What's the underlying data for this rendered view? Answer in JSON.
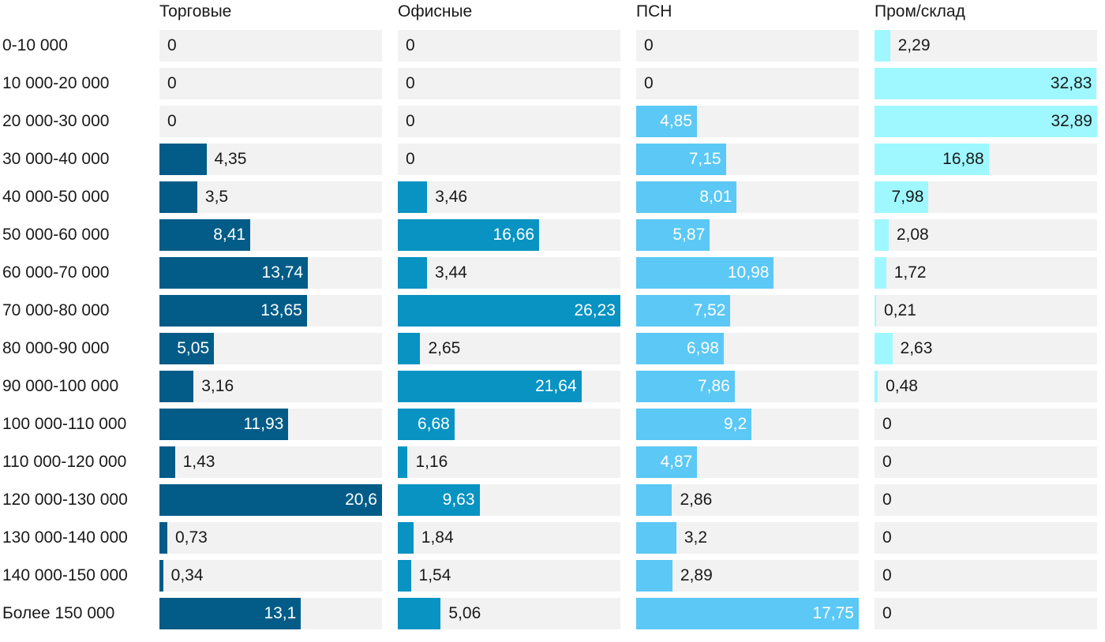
{
  "chart_data": {
    "type": "bar",
    "orientation": "horizontal",
    "layout": "small-multiples",
    "categories": [
      "0-10 000",
      "10 000-20 000",
      "20 000-30 000",
      "30 000-40 000",
      "40 000-50 000",
      "50 000-60 000",
      "60 000-70 000",
      "70 000-80 000",
      "80 000-90 000",
      "90 000-100 000",
      "100 000-110 000",
      "110 000-120 000",
      "120 000-130 000",
      "130 000-140 000",
      "140 000-150 000",
      "Более 150 000"
    ],
    "series": [
      {
        "name": "Торговые",
        "color": "#025c87",
        "values": [
          0,
          0,
          0,
          4.35,
          3.5,
          8.41,
          13.74,
          13.65,
          5.05,
          3.16,
          11.93,
          1.43,
          20.6,
          0.73,
          0.34,
          13.1
        ],
        "labels": [
          "0",
          "0",
          "0",
          "4,35",
          "3,5",
          "8,41",
          "13,74",
          "13,65",
          "5,05",
          "3,16",
          "11,93",
          "1,43",
          "20,6",
          "0,73",
          "0,34",
          "13,1"
        ]
      },
      {
        "name": "Офисные",
        "color": "#0893c2",
        "values": [
          0,
          0,
          0,
          0,
          3.46,
          16.66,
          3.44,
          26.23,
          2.65,
          21.64,
          6.68,
          1.16,
          9.63,
          1.84,
          1.54,
          5.06
        ],
        "labels": [
          "0",
          "0",
          "0",
          "0",
          "3,46",
          "16,66",
          "3,44",
          "26,23",
          "2,65",
          "21,64",
          "6,68",
          "1,16",
          "9,63",
          "1,84",
          "1,54",
          "5,06"
        ]
      },
      {
        "name": "ПСН",
        "color": "#5bc8f5",
        "values": [
          0,
          0,
          4.85,
          7.15,
          8.01,
          5.87,
          10.98,
          7.52,
          6.98,
          7.86,
          9.2,
          4.87,
          2.86,
          3.2,
          2.89,
          17.75
        ],
        "labels": [
          "0",
          "0",
          "4,85",
          "7,15",
          "8,01",
          "5,87",
          "10,98",
          "7,52",
          "6,98",
          "7,86",
          "9,2",
          "4,87",
          "2,86",
          "3,2",
          "2,89",
          "17,75"
        ]
      },
      {
        "name": "Пром/склад",
        "color": "#9ff8ff",
        "values": [
          2.29,
          32.83,
          32.89,
          16.88,
          7.98,
          2.08,
          1.72,
          0.21,
          2.63,
          0.48,
          0,
          0,
          0,
          0,
          0,
          0
        ],
        "labels": [
          "2,29",
          "32,83",
          "32,89",
          "16,88",
          "7,98",
          "2,08",
          "1,72",
          "0,21",
          "2,63",
          "0,48",
          "0",
          "0",
          "0",
          "0",
          "0",
          "0"
        ]
      }
    ],
    "grid": false,
    "legend": "none"
  }
}
